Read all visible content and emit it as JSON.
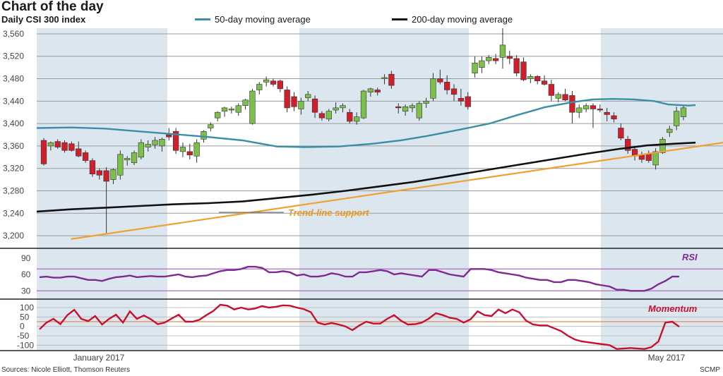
{
  "chart_data": {
    "type": "candlestick",
    "title": "Chart of the day",
    "subtitle": "Daily CSI 300 index",
    "legend": [
      {
        "name": "50-day moving average",
        "color": "#3a8fa5"
      },
      {
        "name": "200-day moving average",
        "color": "#111111"
      }
    ],
    "months": [
      {
        "label": "",
        "shaded": true
      },
      {
        "label": "January 2017",
        "shaded": false
      },
      {
        "label": "",
        "shaded": false
      },
      {
        "label": "",
        "shaded": true
      },
      {
        "label": "",
        "shaded": false
      },
      {
        "label": "",
        "shaded": true
      },
      {
        "label": "May 2017",
        "shaded": false
      }
    ],
    "price": {
      "yticks": [
        3200,
        3240,
        3280,
        3320,
        3360,
        3400,
        3440,
        3480,
        3520,
        3560
      ],
      "ylim": [
        3180,
        3570
      ],
      "candles": [
        [
          3370,
          3374,
          3325,
          3328
        ],
        [
          3360,
          3368,
          3352,
          3366
        ],
        [
          3368,
          3372,
          3355,
          3358
        ],
        [
          3366,
          3370,
          3348,
          3352
        ],
        [
          3364,
          3368,
          3350,
          3352
        ],
        [
          3355,
          3368,
          3340,
          3342
        ],
        [
          3348,
          3352,
          3330,
          3334
        ],
        [
          3334,
          3338,
          3305,
          3310
        ],
        [
          3316,
          3320,
          3300,
          3308
        ],
        [
          3316,
          3322,
          3205,
          3297
        ],
        [
          3300,
          3320,
          3292,
          3318
        ],
        [
          3308,
          3352,
          3300,
          3345
        ],
        [
          3335,
          3342,
          3325,
          3338
        ],
        [
          3330,
          3352,
          3326,
          3348
        ],
        [
          3340,
          3372,
          3336,
          3366
        ],
        [
          3358,
          3370,
          3350,
          3363
        ],
        [
          3362,
          3376,
          3355,
          3370
        ],
        [
          3360,
          3375,
          3350,
          3372
        ],
        [
          3380,
          3392,
          3370,
          3376
        ],
        [
          3386,
          3392,
          3346,
          3352
        ],
        [
          3350,
          3366,
          3340,
          3358
        ],
        [
          3350,
          3364,
          3336,
          3344
        ],
        [
          3342,
          3372,
          3330,
          3366
        ],
        [
          3372,
          3388,
          3366,
          3386
        ],
        [
          3392,
          3402,
          3386,
          3398
        ],
        [
          3410,
          3422,
          3404,
          3420
        ],
        [
          3422,
          3430,
          3412,
          3428
        ],
        [
          3424,
          3430,
          3418,
          3426
        ],
        [
          3420,
          3436,
          3414,
          3432
        ],
        [
          3432,
          3444,
          3425,
          3442
        ],
        [
          3400,
          3462,
          3398,
          3458
        ],
        [
          3460,
          3474,
          3452,
          3470
        ],
        [
          3474,
          3484,
          3466,
          3478
        ],
        [
          3476,
          3480,
          3466,
          3470
        ],
        [
          3476,
          3478,
          3456,
          3462
        ],
        [
          3460,
          3466,
          3420,
          3428
        ],
        [
          3448,
          3456,
          3422,
          3430
        ],
        [
          3426,
          3446,
          3416,
          3440
        ],
        [
          3446,
          3458,
          3440,
          3452
        ],
        [
          3444,
          3450,
          3410,
          3420
        ],
        [
          3418,
          3422,
          3405,
          3410
        ],
        [
          3408,
          3426,
          3404,
          3422
        ],
        [
          3424,
          3438,
          3418,
          3428
        ],
        [
          3428,
          3436,
          3420,
          3432
        ],
        [
          3420,
          3426,
          3400,
          3404
        ],
        [
          3404,
          3420,
          3398,
          3412
        ],
        [
          3410,
          3460,
          3408,
          3458
        ],
        [
          3456,
          3464,
          3448,
          3462
        ],
        [
          3460,
          3464,
          3450,
          3456
        ],
        [
          3480,
          3488,
          3470,
          3482
        ],
        [
          3488,
          3494,
          3462,
          3468
        ],
        [
          3430,
          3436,
          3418,
          3428
        ],
        [
          3422,
          3434,
          3414,
          3430
        ],
        [
          3428,
          3436,
          3420,
          3432
        ],
        [
          3410,
          3440,
          3405,
          3436
        ],
        [
          3436,
          3446,
          3428,
          3440
        ],
        [
          3445,
          3490,
          3440,
          3480
        ],
        [
          3480,
          3496,
          3470,
          3474
        ],
        [
          3474,
          3486,
          3452,
          3460
        ],
        [
          3462,
          3470,
          3440,
          3452
        ],
        [
          3445,
          3462,
          3432,
          3440
        ],
        [
          3448,
          3456,
          3425,
          3430
        ],
        [
          3490,
          3520,
          3482,
          3508
        ],
        [
          3500,
          3520,
          3490,
          3512
        ],
        [
          3512,
          3522,
          3506,
          3518
        ],
        [
          3516,
          3524,
          3506,
          3512
        ],
        [
          3518,
          3570,
          3498,
          3540
        ],
        [
          3520,
          3530,
          3506,
          3516
        ],
        [
          3516,
          3522,
          3484,
          3490
        ],
        [
          3510,
          3518,
          3476,
          3478
        ],
        [
          3480,
          3488,
          3472,
          3484
        ],
        [
          3484,
          3486,
          3470,
          3476
        ],
        [
          3476,
          3486,
          3468,
          3470
        ],
        [
          3470,
          3478,
          3440,
          3450
        ],
        [
          3445,
          3456,
          3438,
          3452
        ],
        [
          3452,
          3462,
          3440,
          3442
        ],
        [
          3450,
          3458,
          3400,
          3420
        ],
        [
          3420,
          3434,
          3410,
          3428
        ],
        [
          3426,
          3436,
          3420,
          3432
        ],
        [
          3432,
          3436,
          3392,
          3426
        ],
        [
          3426,
          3434,
          3420,
          3424
        ],
        [
          3420,
          3428,
          3404,
          3416
        ],
        [
          3414,
          3420,
          3402,
          3408
        ],
        [
          3392,
          3400,
          3370,
          3374
        ],
        [
          3372,
          3378,
          3346,
          3352
        ],
        [
          3354,
          3360,
          3334,
          3342
        ],
        [
          3344,
          3350,
          3330,
          3336
        ],
        [
          3346,
          3352,
          3330,
          3334
        ],
        [
          3326,
          3356,
          3318,
          3350
        ],
        [
          3348,
          3376,
          3346,
          3372
        ],
        [
          3384,
          3396,
          3376,
          3390
        ],
        [
          3396,
          3430,
          3388,
          3422
        ],
        [
          3412,
          3432,
          3406,
          3428
        ]
      ],
      "ma50": [
        [
          0,
          3392
        ],
        [
          0.05,
          3393
        ],
        [
          0.1,
          3391
        ],
        [
          0.15,
          3386
        ],
        [
          0.2,
          3381
        ],
        [
          0.25,
          3376
        ],
        [
          0.3,
          3370
        ],
        [
          0.35,
          3359
        ],
        [
          0.39,
          3358
        ],
        [
          0.44,
          3359
        ],
        [
          0.49,
          3364
        ],
        [
          0.53,
          3370
        ],
        [
          0.57,
          3378
        ],
        [
          0.62,
          3390
        ],
        [
          0.66,
          3400
        ],
        [
          0.7,
          3415
        ],
        [
          0.74,
          3429
        ],
        [
          0.78,
          3438
        ],
        [
          0.81,
          3443
        ],
        [
          0.84,
          3444
        ],
        [
          0.87,
          3443
        ],
        [
          0.9,
          3440
        ],
        [
          0.92,
          3434
        ],
        [
          0.95,
          3432
        ],
        [
          0.96,
          3433
        ]
      ],
      "ma200": [
        [
          0,
          3243
        ],
        [
          0.05,
          3247
        ],
        [
          0.1,
          3250
        ],
        [
          0.15,
          3253
        ],
        [
          0.2,
          3256
        ],
        [
          0.25,
          3258
        ],
        [
          0.3,
          3261
        ],
        [
          0.35,
          3267
        ],
        [
          0.4,
          3273
        ],
        [
          0.45,
          3280
        ],
        [
          0.5,
          3288
        ],
        [
          0.55,
          3296
        ],
        [
          0.6,
          3306
        ],
        [
          0.65,
          3316
        ],
        [
          0.7,
          3326
        ],
        [
          0.75,
          3336
        ],
        [
          0.8,
          3346
        ],
        [
          0.85,
          3355
        ],
        [
          0.89,
          3361
        ],
        [
          0.93,
          3364
        ],
        [
          0.96,
          3366
        ]
      ],
      "trendline": [
        [
          0.05,
          3194
        ],
        [
          1.0,
          3366
        ]
      ],
      "annotation": "Trend-line support"
    },
    "rsi": {
      "label": "RSI",
      "yticks": [
        30,
        60,
        90
      ],
      "levels": [
        30,
        70
      ],
      "values": [
        55,
        56,
        54,
        54,
        56,
        56,
        53,
        50,
        50,
        48,
        52,
        55,
        56,
        58,
        55,
        56,
        57,
        56,
        56,
        58,
        60,
        56,
        55,
        57,
        58,
        62,
        66,
        68,
        68,
        70,
        74,
        74,
        72,
        64,
        64,
        66,
        64,
        58,
        60,
        56,
        56,
        58,
        62,
        60,
        56,
        56,
        64,
        64,
        66,
        68,
        66,
        60,
        62,
        60,
        58,
        56,
        68,
        68,
        64,
        60,
        58,
        56,
        70,
        70,
        70,
        68,
        64,
        62,
        60,
        58,
        54,
        52,
        50,
        50,
        46,
        46,
        50,
        50,
        48,
        46,
        42,
        40,
        38,
        32,
        32,
        30,
        30,
        30,
        34,
        42,
        48,
        56,
        56
      ]
    },
    "momentum": {
      "label": "Momentum",
      "yticks": [
        100,
        50,
        0,
        -50,
        -100
      ],
      "levels": [
        25
      ],
      "values": [
        -15,
        20,
        40,
        12,
        60,
        88,
        40,
        28,
        55,
        10,
        40,
        62,
        20,
        80,
        40,
        58,
        38,
        12,
        20,
        42,
        62,
        25,
        25,
        35,
        60,
        82,
        115,
        110,
        90,
        100,
        90,
        95,
        108,
        100,
        104,
        112,
        110,
        100,
        92,
        76,
        20,
        10,
        18,
        10,
        0,
        -20,
        5,
        25,
        15,
        15,
        40,
        60,
        30,
        10,
        12,
        20,
        42,
        70,
        60,
        46,
        40,
        20,
        38,
        80,
        60,
        55,
        90,
        70,
        90,
        75,
        30,
        10,
        5,
        5,
        -10,
        -25,
        -50,
        -70,
        -80,
        -85,
        -90,
        -95,
        -100,
        -120,
        -118,
        -115,
        -118,
        -120,
        -110,
        -80,
        20,
        25,
        -2
      ]
    }
  },
  "footer": {
    "source": "Sources: Nicole Elliott, Thomson Reuters",
    "credit": "SCMP"
  }
}
